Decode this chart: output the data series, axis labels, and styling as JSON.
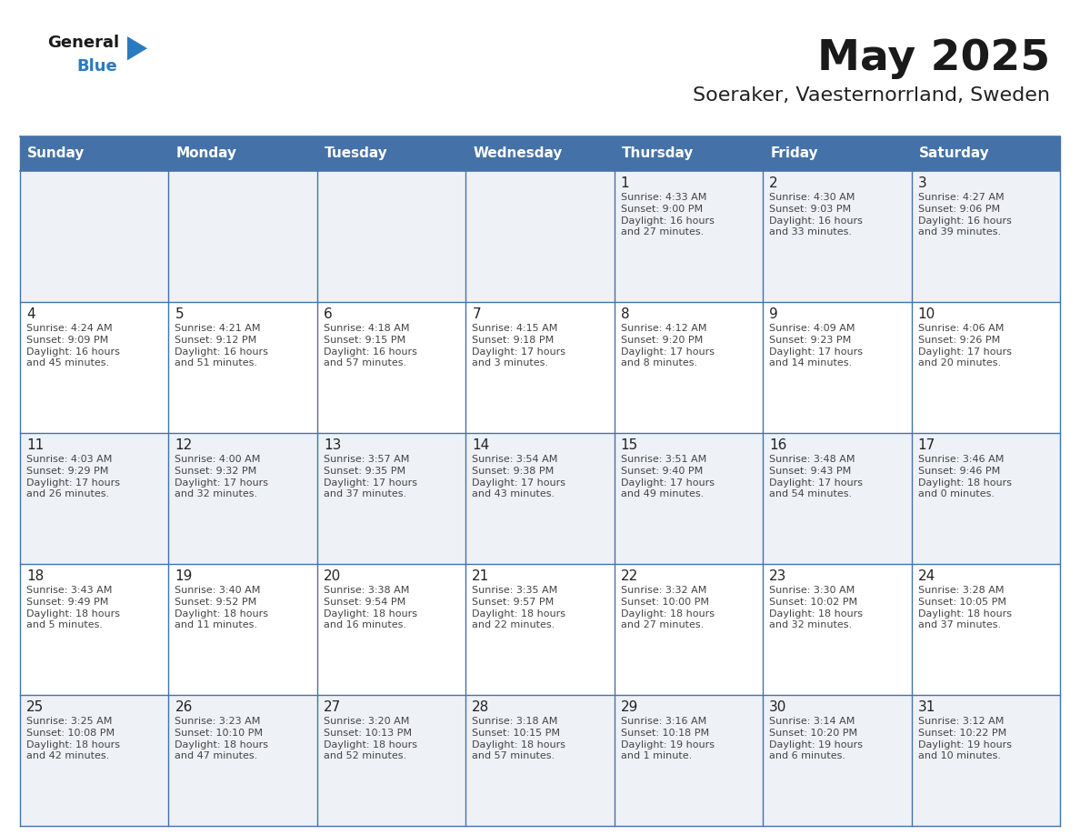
{
  "title": "May 2025",
  "subtitle": "Soeraker, Vaesternorrland, Sweden",
  "days_of_week": [
    "Sunday",
    "Monday",
    "Tuesday",
    "Wednesday",
    "Thursday",
    "Friday",
    "Saturday"
  ],
  "header_bg": "#4472a8",
  "header_text": "#ffffff",
  "row_bg_light": "#eef2f7",
  "row_bg_white": "#ffffff",
  "cell_border": "#4472a8",
  "day_num_color": "#222222",
  "text_color": "#444444",
  "title_color": "#1a1a1a",
  "subtitle_color": "#222222",
  "logo_general_color": "#1a1a1a",
  "logo_blue_color": "#2a7abf",
  "logo_triangle_color": "#2a7abf",
  "calendar": [
    [
      {
        "day": "",
        "info": ""
      },
      {
        "day": "",
        "info": ""
      },
      {
        "day": "",
        "info": ""
      },
      {
        "day": "",
        "info": ""
      },
      {
        "day": "1",
        "info": "Sunrise: 4:33 AM\nSunset: 9:00 PM\nDaylight: 16 hours\nand 27 minutes."
      },
      {
        "day": "2",
        "info": "Sunrise: 4:30 AM\nSunset: 9:03 PM\nDaylight: 16 hours\nand 33 minutes."
      },
      {
        "day": "3",
        "info": "Sunrise: 4:27 AM\nSunset: 9:06 PM\nDaylight: 16 hours\nand 39 minutes."
      }
    ],
    [
      {
        "day": "4",
        "info": "Sunrise: 4:24 AM\nSunset: 9:09 PM\nDaylight: 16 hours\nand 45 minutes."
      },
      {
        "day": "5",
        "info": "Sunrise: 4:21 AM\nSunset: 9:12 PM\nDaylight: 16 hours\nand 51 minutes."
      },
      {
        "day": "6",
        "info": "Sunrise: 4:18 AM\nSunset: 9:15 PM\nDaylight: 16 hours\nand 57 minutes."
      },
      {
        "day": "7",
        "info": "Sunrise: 4:15 AM\nSunset: 9:18 PM\nDaylight: 17 hours\nand 3 minutes."
      },
      {
        "day": "8",
        "info": "Sunrise: 4:12 AM\nSunset: 9:20 PM\nDaylight: 17 hours\nand 8 minutes."
      },
      {
        "day": "9",
        "info": "Sunrise: 4:09 AM\nSunset: 9:23 PM\nDaylight: 17 hours\nand 14 minutes."
      },
      {
        "day": "10",
        "info": "Sunrise: 4:06 AM\nSunset: 9:26 PM\nDaylight: 17 hours\nand 20 minutes."
      }
    ],
    [
      {
        "day": "11",
        "info": "Sunrise: 4:03 AM\nSunset: 9:29 PM\nDaylight: 17 hours\nand 26 minutes."
      },
      {
        "day": "12",
        "info": "Sunrise: 4:00 AM\nSunset: 9:32 PM\nDaylight: 17 hours\nand 32 minutes."
      },
      {
        "day": "13",
        "info": "Sunrise: 3:57 AM\nSunset: 9:35 PM\nDaylight: 17 hours\nand 37 minutes."
      },
      {
        "day": "14",
        "info": "Sunrise: 3:54 AM\nSunset: 9:38 PM\nDaylight: 17 hours\nand 43 minutes."
      },
      {
        "day": "15",
        "info": "Sunrise: 3:51 AM\nSunset: 9:40 PM\nDaylight: 17 hours\nand 49 minutes."
      },
      {
        "day": "16",
        "info": "Sunrise: 3:48 AM\nSunset: 9:43 PM\nDaylight: 17 hours\nand 54 minutes."
      },
      {
        "day": "17",
        "info": "Sunrise: 3:46 AM\nSunset: 9:46 PM\nDaylight: 18 hours\nand 0 minutes."
      }
    ],
    [
      {
        "day": "18",
        "info": "Sunrise: 3:43 AM\nSunset: 9:49 PM\nDaylight: 18 hours\nand 5 minutes."
      },
      {
        "day": "19",
        "info": "Sunrise: 3:40 AM\nSunset: 9:52 PM\nDaylight: 18 hours\nand 11 minutes."
      },
      {
        "day": "20",
        "info": "Sunrise: 3:38 AM\nSunset: 9:54 PM\nDaylight: 18 hours\nand 16 minutes."
      },
      {
        "day": "21",
        "info": "Sunrise: 3:35 AM\nSunset: 9:57 PM\nDaylight: 18 hours\nand 22 minutes."
      },
      {
        "day": "22",
        "info": "Sunrise: 3:32 AM\nSunset: 10:00 PM\nDaylight: 18 hours\nand 27 minutes."
      },
      {
        "day": "23",
        "info": "Sunrise: 3:30 AM\nSunset: 10:02 PM\nDaylight: 18 hours\nand 32 minutes."
      },
      {
        "day": "24",
        "info": "Sunrise: 3:28 AM\nSunset: 10:05 PM\nDaylight: 18 hours\nand 37 minutes."
      }
    ],
    [
      {
        "day": "25",
        "info": "Sunrise: 3:25 AM\nSunset: 10:08 PM\nDaylight: 18 hours\nand 42 minutes."
      },
      {
        "day": "26",
        "info": "Sunrise: 3:23 AM\nSunset: 10:10 PM\nDaylight: 18 hours\nand 47 minutes."
      },
      {
        "day": "27",
        "info": "Sunrise: 3:20 AM\nSunset: 10:13 PM\nDaylight: 18 hours\nand 52 minutes."
      },
      {
        "day": "28",
        "info": "Sunrise: 3:18 AM\nSunset: 10:15 PM\nDaylight: 18 hours\nand 57 minutes."
      },
      {
        "day": "29",
        "info": "Sunrise: 3:16 AM\nSunset: 10:18 PM\nDaylight: 19 hours\nand 1 minute."
      },
      {
        "day": "30",
        "info": "Sunrise: 3:14 AM\nSunset: 10:20 PM\nDaylight: 19 hours\nand 6 minutes."
      },
      {
        "day": "31",
        "info": "Sunrise: 3:12 AM\nSunset: 10:22 PM\nDaylight: 19 hours\nand 10 minutes."
      }
    ]
  ]
}
